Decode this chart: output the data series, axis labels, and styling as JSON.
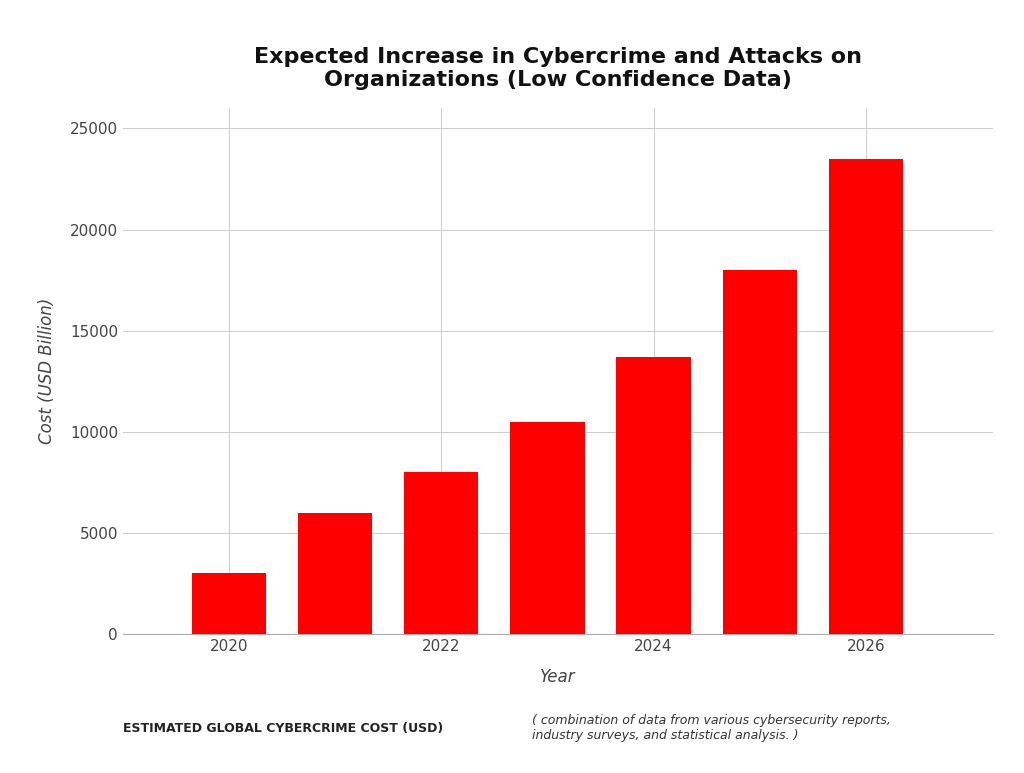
{
  "title": "Expected Increase in Cybercrime and Attacks on\nOrganizations (Low Confidence Data)",
  "xlabel": "Year",
  "ylabel": "Cost (USD Billion)",
  "years": [
    2020,
    2021,
    2022,
    2023,
    2024,
    2025,
    2026
  ],
  "values": [
    3000,
    6000,
    8000,
    10500,
    13700,
    18000,
    23500
  ],
  "bar_color": "#FF0000",
  "background_color": "#FFFFFF",
  "ylim": [
    0,
    26000
  ],
  "yticks": [
    0,
    5000,
    10000,
    15000,
    20000,
    25000
  ],
  "grid_color": "#CCCCCC",
  "title_fontsize": 16,
  "axis_label_fontsize": 12,
  "tick_fontsize": 11,
  "legend_label": "ESTIMATED GLOBAL CYBERCRIME COST (USD)",
  "source_text": "( combination of data from various cybersecurity reports,\nindustry surveys, and statistical analysis. )",
  "xtick_labels": [
    "2020",
    "2022",
    "2024",
    "2026"
  ],
  "xtick_positions": [
    2020,
    2022,
    2024,
    2026
  ],
  "bar_width": 0.7,
  "xlim": [
    2019.0,
    2027.2
  ]
}
